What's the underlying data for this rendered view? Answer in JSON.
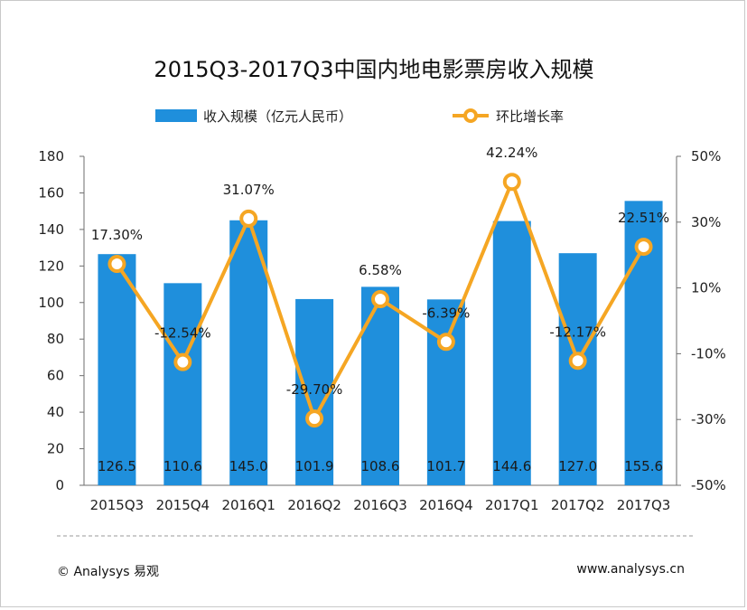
{
  "chart_data": {
    "type": "bar",
    "title": "2015Q3-2017Q3中国内地电影票房收入规模",
    "categories": [
      "2015Q3",
      "2015Q4",
      "2016Q1",
      "2016Q2",
      "2016Q3",
      "2016Q4",
      "2017Q1",
      "2017Q2",
      "2017Q3"
    ],
    "series": [
      {
        "name": "收入规模（亿元人民币）",
        "type": "bar",
        "axis": "left",
        "color": "#1f8fdc",
        "values": [
          126.5,
          110.6,
          145.0,
          101.9,
          108.6,
          101.7,
          144.6,
          127.0,
          155.6
        ],
        "labels": [
          "126.5",
          "110.6",
          "145.0",
          "101.9",
          "108.6",
          "101.7",
          "144.6",
          "127.0",
          "155.6"
        ]
      },
      {
        "name": "环比增长率",
        "type": "line",
        "axis": "right",
        "color": "#f5a623",
        "values": [
          17.3,
          -12.54,
          31.07,
          -29.7,
          6.58,
          -6.39,
          42.24,
          -12.17,
          22.51
        ],
        "labels": [
          "17.30%",
          "-12.54%",
          "31.07%",
          "-29.70%",
          "6.58%",
          "-6.39%",
          "42.24%",
          "-12.17%",
          "22.51%"
        ]
      }
    ],
    "y_left": {
      "min": 0,
      "max": 180,
      "ticks": [
        "0",
        "20",
        "40",
        "60",
        "80",
        "100",
        "120",
        "140",
        "160",
        "180"
      ]
    },
    "y_right": {
      "min": -50,
      "max": 50,
      "ticks": [
        "-50%",
        "-30%",
        "-10%",
        "10%",
        "30%",
        "50%"
      ]
    },
    "legend_position": "top",
    "grid": false
  },
  "footer": {
    "left": "© Analysys 易观",
    "right": "www.analysys.cn"
  }
}
